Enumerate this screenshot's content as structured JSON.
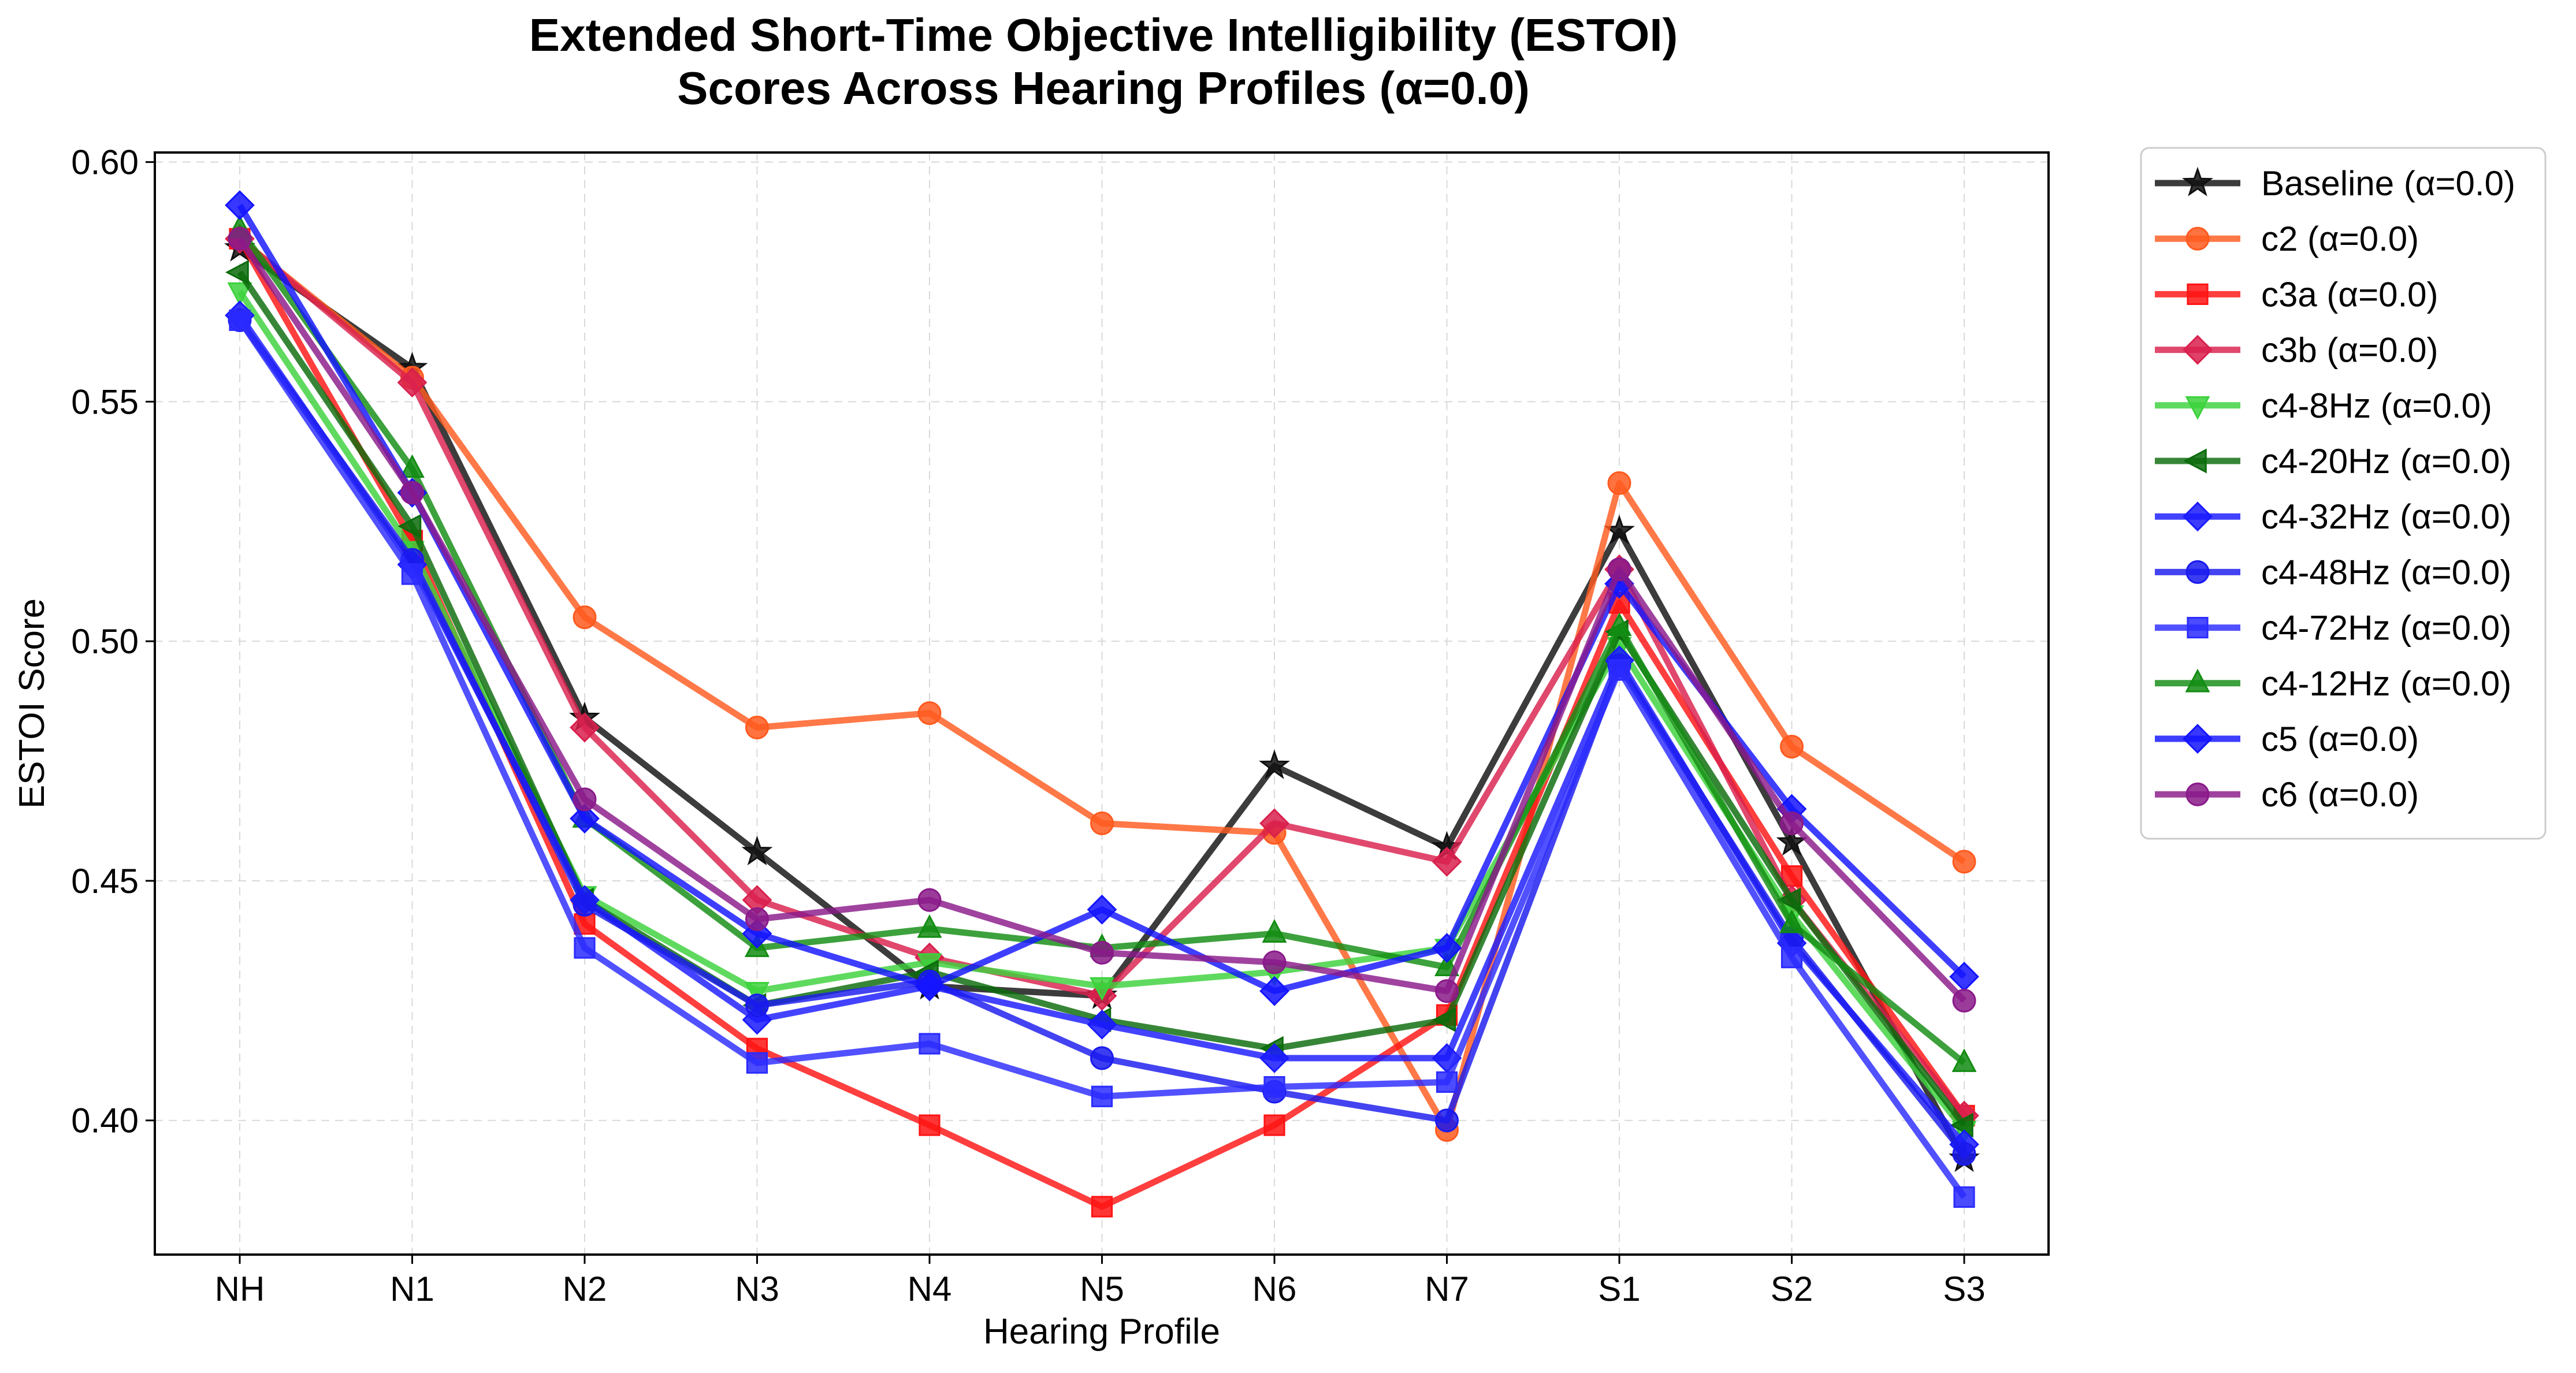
{
  "chart_data": {
    "type": "line",
    "title_line1": "Extended Short-Time Objective Intelligibility (ESTOI)",
    "title_line2": "Scores Across Hearing Profiles (α=0.0)",
    "xlabel": "Hearing Profile",
    "ylabel": "ESTOI Score",
    "categories": [
      "NH",
      "N1",
      "N2",
      "N3",
      "N4",
      "N5",
      "N6",
      "N7",
      "S1",
      "S2",
      "S3"
    ],
    "ylim": [
      0.372,
      0.602
    ],
    "yticks": [
      0.4,
      0.45,
      0.5,
      0.55,
      0.6
    ],
    "ytick_labels": [
      "0.40",
      "0.45",
      "0.50",
      "0.55",
      "0.60"
    ],
    "grid": true,
    "legend_position": "outside-right",
    "series": [
      {
        "name": "Baseline (α=0.0)",
        "color": "#111111",
        "marker": "star",
        "values": [
          0.582,
          0.557,
          0.484,
          0.456,
          0.428,
          0.426,
          0.474,
          0.457,
          0.523,
          0.458,
          0.392
        ]
      },
      {
        "name": "c2 (α=0.0)",
        "color": "#ff5a1f",
        "marker": "circle",
        "values": [
          0.584,
          0.555,
          0.505,
          0.482,
          0.485,
          0.462,
          0.46,
          0.398,
          0.533,
          0.478,
          0.454
        ]
      },
      {
        "name": "c3a (α=0.0)",
        "color": "#ff1414",
        "marker": "square",
        "values": [
          0.584,
          0.521,
          0.441,
          0.415,
          0.399,
          0.382,
          0.399,
          0.422,
          0.508,
          0.451,
          0.401
        ]
      },
      {
        "name": "c3b (α=0.0)",
        "color": "#d9204d",
        "marker": "diamond",
        "values": [
          0.584,
          0.554,
          0.482,
          0.446,
          0.434,
          0.426,
          0.462,
          0.454,
          0.515,
          0.446,
          0.401
        ]
      },
      {
        "name": "c4-8Hz (α=0.0)",
        "color": "#3cd23c",
        "marker": "triangle-down",
        "values": [
          0.573,
          0.519,
          0.447,
          0.427,
          0.433,
          0.428,
          0.431,
          0.436,
          0.499,
          0.443,
          0.398
        ]
      },
      {
        "name": "c4-20Hz (α=0.0)",
        "color": "#0b6b0b",
        "marker": "triangle-left",
        "values": [
          0.577,
          0.524,
          0.446,
          0.424,
          0.431,
          0.421,
          0.415,
          0.421,
          0.502,
          0.446,
          0.399
        ]
      },
      {
        "name": "c4-32Hz (α=0.0)",
        "color": "#1a1aff",
        "marker": "diamond",
        "values": [
          0.568,
          0.516,
          0.446,
          0.421,
          0.428,
          0.42,
          0.413,
          0.413,
          0.496,
          0.437,
          0.395
        ]
      },
      {
        "name": "c4-48Hz (α=0.0)",
        "color": "#1a1aee",
        "marker": "circle",
        "values": [
          0.567,
          0.517,
          0.445,
          0.424,
          0.429,
          0.413,
          0.406,
          0.4,
          0.495,
          0.438,
          0.393
        ]
      },
      {
        "name": "c4-72Hz (α=0.0)",
        "color": "#2b2bff",
        "marker": "square",
        "values": [
          0.567,
          0.514,
          0.436,
          0.412,
          0.416,
          0.405,
          0.407,
          0.408,
          0.494,
          0.434,
          0.384
        ]
      },
      {
        "name": "c4-12Hz (α=0.0)",
        "color": "#128c12",
        "marker": "triangle-up",
        "values": [
          0.586,
          0.536,
          0.463,
          0.436,
          0.44,
          0.436,
          0.439,
          0.432,
          0.503,
          0.441,
          0.412
        ]
      },
      {
        "name": "c5 (α=0.0)",
        "color": "#1414ff",
        "marker": "diamond",
        "values": [
          0.591,
          0.531,
          0.463,
          0.439,
          0.428,
          0.444,
          0.427,
          0.436,
          0.512,
          0.465,
          0.43
        ]
      },
      {
        "name": "c6 (α=0.0)",
        "color": "#8a1a8a",
        "marker": "circle",
        "values": [
          0.584,
          0.531,
          0.467,
          0.442,
          0.446,
          0.435,
          0.433,
          0.427,
          0.515,
          0.462,
          0.425
        ]
      }
    ]
  }
}
